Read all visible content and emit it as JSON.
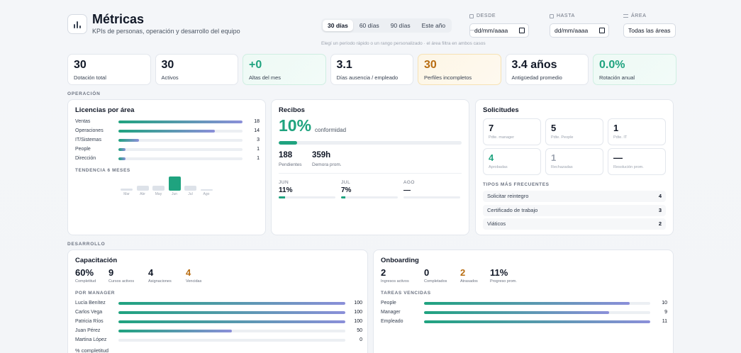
{
  "header": {
    "icon": "bar-chart-icon",
    "title": "Métricas",
    "subtitle": "KPIs de personas, operación y desarrollo del equipo",
    "periods": [
      "30 días",
      "60 días",
      "90 días",
      "Este año"
    ],
    "active_period": 0,
    "desde_label": "DESDE",
    "hasta_label": "HASTA",
    "area_label": "ÁREA",
    "desde_value": "dd/mm/aaaa",
    "hasta_value": "dd/mm/aaaa",
    "area_value": "Todas las áreas",
    "hint": "Elegí un período rápido o un rango personalizado · el área filtra en ambos casos"
  },
  "kpis": [
    {
      "value": "30",
      "label": "Dotación total",
      "tone": "plain"
    },
    {
      "value": "30",
      "label": "Activos",
      "tone": "plain"
    },
    {
      "value": "+0",
      "label": "Altas del mes",
      "tone": "green"
    },
    {
      "value": "3.1",
      "label": "Días ausencia / empleado",
      "tone": "plain"
    },
    {
      "value": "30",
      "label": "Perfiles incompletos",
      "tone": "amber"
    },
    {
      "value": "3.4 años",
      "label": "Antigüedad promedio",
      "tone": "plain"
    },
    {
      "value": "0.0%",
      "label": "Rotación anual",
      "tone": "green"
    }
  ],
  "sections": {
    "operacion": "OPERACIÓN",
    "desarrollo": "DESARROLLO"
  },
  "licencias": {
    "title": "Licencias por área",
    "max": 18,
    "items": [
      {
        "label": "Ventas",
        "value": 18
      },
      {
        "label": "Operaciones",
        "value": 14
      },
      {
        "label": "IT/Sistemas",
        "value": 3
      },
      {
        "label": "People",
        "value": 1
      },
      {
        "label": "Dirección",
        "value": 1
      }
    ],
    "trend_label": "TENDENCIA 6 MESES",
    "trend": [
      {
        "month": "Mar",
        "value": 1
      },
      {
        "month": "Abr",
        "value": 2
      },
      {
        "month": "May",
        "value": 2
      },
      {
        "month": "Jun",
        "value": 6
      },
      {
        "month": "Jul",
        "value": 2
      },
      {
        "month": "Ago",
        "value": 0.3
      }
    ]
  },
  "recibos": {
    "title": "Recibos",
    "conformidad_value": "10%",
    "conformidad_pct": 10,
    "conformidad_label": "conformidad",
    "pendientes_value": "188",
    "pendientes_label": "Pendientes",
    "demora_value": "359h",
    "demora_label": "Demora prom.",
    "months": [
      {
        "label": "JUN",
        "value": "11%",
        "pct": 11
      },
      {
        "label": "JUL",
        "value": "7%",
        "pct": 7
      },
      {
        "label": "AGO",
        "value": "—",
        "pct": 0
      }
    ]
  },
  "solicitudes": {
    "title": "Solicitudes",
    "stats": [
      {
        "value": "7",
        "label": "Pdte. manager",
        "tone": "plain"
      },
      {
        "value": "5",
        "label": "Pdte. People",
        "tone": "plain"
      },
      {
        "value": "1",
        "label": "Pdte. IT",
        "tone": "plain"
      },
      {
        "value": "4",
        "label": "Aprobadas",
        "tone": "green"
      },
      {
        "value": "1",
        "label": "Rechazadas",
        "tone": "muted"
      },
      {
        "value": "—",
        "label": "Resolución prom.",
        "tone": "plain"
      }
    ],
    "types_label": "TIPOS MÁS FRECUENTES",
    "types": [
      {
        "name": "Solicitar reintegro",
        "count": "4"
      },
      {
        "name": "Certificado de trabajo",
        "count": "3"
      },
      {
        "name": "Viáticos",
        "count": "2"
      }
    ]
  },
  "capacitacion": {
    "title": "Capacitación",
    "stats": [
      {
        "value": "60%",
        "label": "Completitud",
        "tone": "plain"
      },
      {
        "value": "9",
        "label": "Cursos activos",
        "tone": "plain"
      },
      {
        "value": "4",
        "label": "Asignaciones",
        "tone": "plain"
      },
      {
        "value": "4",
        "label": "Vencidas",
        "tone": "amber"
      }
    ],
    "manager_label": "POR MANAGER",
    "max": 100,
    "managers": [
      {
        "label": "Lucía Benítez",
        "value": 100
      },
      {
        "label": "Carlos Vega",
        "value": 100
      },
      {
        "label": "Patricia Ríos",
        "value": 100
      },
      {
        "label": "Juan Pérez",
        "value": 50
      },
      {
        "label": "Martina López",
        "value": 0
      }
    ],
    "footer": "% completitud"
  },
  "onboarding": {
    "title": "Onboarding",
    "stats": [
      {
        "value": "2",
        "label": "Ingresos activos",
        "tone": "plain"
      },
      {
        "value": "0",
        "label": "Completados",
        "tone": "plain"
      },
      {
        "value": "2",
        "label": "Atrasados",
        "tone": "amber"
      },
      {
        "value": "11%",
        "label": "Progreso prom.",
        "tone": "plain"
      }
    ],
    "tasks_label": "TAREAS VENCIDAS",
    "max": 11,
    "tasks": [
      {
        "label": "People",
        "value": 10
      },
      {
        "label": "Manager",
        "value": 9
      },
      {
        "label": "Empleado",
        "value": 11
      }
    ]
  }
}
